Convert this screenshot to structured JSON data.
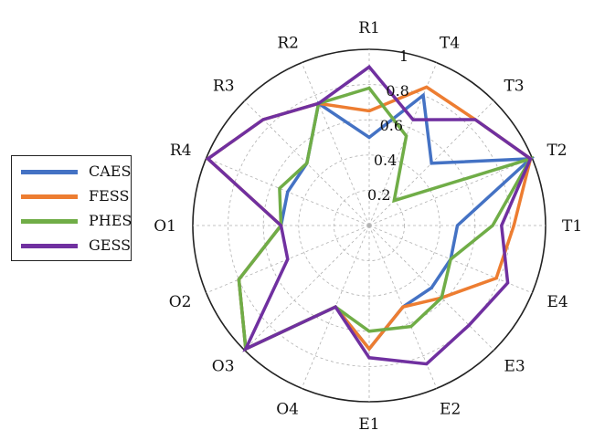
{
  "chart_data": {
    "type": "radar",
    "axes": [
      "R1",
      "T4",
      "T3",
      "T2",
      "T1",
      "E4",
      "E3",
      "E2",
      "E1",
      "O4",
      "O3",
      "O2",
      "O1",
      "R4",
      "R3",
      "R2"
    ],
    "rlim": [
      0,
      1
    ],
    "radial_ticks": [
      0.2,
      0.4,
      0.6,
      0.8,
      1
    ],
    "radial_tick_labels": [
      "0.2",
      "0.4",
      "0.6",
      "0.8",
      "1"
    ],
    "grid": true,
    "legend_position": "left",
    "series": [
      {
        "name": "CAES",
        "color": "#4472C4",
        "values": [
          0.5,
          0.8,
          0.5,
          0.99,
          0.5,
          0.5,
          0.5,
          0.5,
          0.7,
          0.5,
          0.99,
          0.8,
          0.5,
          0.5,
          0.5,
          0.75
        ]
      },
      {
        "name": "FESS",
        "color": "#ED7D31",
        "values": [
          0.65,
          0.85,
          0.85,
          0.99,
          0.82,
          0.78,
          0.58,
          0.5,
          0.7,
          0.5,
          0.99,
          0.8,
          0.5,
          0.99,
          0.85,
          0.75
        ]
      },
      {
        "name": "PHES",
        "color": "#70AD47",
        "values": [
          0.78,
          0.55,
          0.2,
          0.99,
          0.7,
          0.5,
          0.58,
          0.62,
          0.6,
          0.5,
          0.99,
          0.8,
          0.5,
          0.55,
          0.5,
          0.75
        ]
      },
      {
        "name": "GESS",
        "color": "#7030A0",
        "values": [
          0.9,
          0.65,
          0.85,
          0.99,
          0.75,
          0.85,
          0.8,
          0.85,
          0.75,
          0.5,
          0.99,
          0.5,
          0.5,
          0.99,
          0.85,
          0.75
        ]
      }
    ]
  }
}
